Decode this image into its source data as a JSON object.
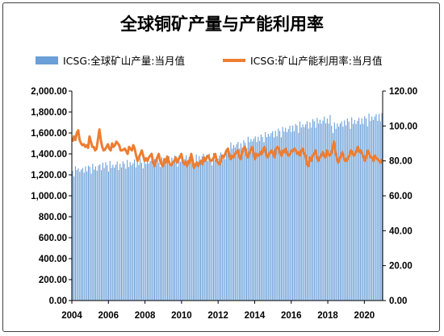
{
  "chart_data": {
    "type": "bar+line",
    "title": "全球铜矿产量与产能利用率",
    "legend": {
      "placement": "top"
    },
    "series": [
      {
        "name": "ICSG:全球矿山产量:当月值",
        "kind": "bar",
        "axis": "left",
        "color": "#6a9fd8",
        "values": [
          1238,
          1185,
          1282,
          1246,
          1262,
          1228,
          1250,
          1265,
          1221,
          1280,
          1232,
          1288,
          1276,
          1212,
          1305,
          1250,
          1280,
          1240,
          1290,
          1300,
          1245,
          1316,
          1265,
          1320,
          1292,
          1232,
          1331,
          1268,
          1296,
          1268,
          1297,
          1327,
          1246,
          1306,
          1271,
          1329,
          1307,
          1258,
          1342,
          1275,
          1321,
          1291,
          1311,
          1346,
          1271,
          1339,
          1295,
          1358,
          1314,
          1262,
          1355,
          1303,
          1335,
          1307,
          1332,
          1349,
          1286,
          1351,
          1300,
          1363,
          1315,
          1276,
          1368,
          1315,
          1361,
          1330,
          1346,
          1378,
          1308,
          1364,
          1309,
          1384,
          1336,
          1279,
          1385,
          1325,
          1365,
          1343,
          1352,
          1387,
          1307,
          1372,
          1327,
          1395,
          1349,
          1297,
          1394,
          1328,
          1380,
          1347,
          1379,
          1402,
          1334,
          1389,
          1334,
          1403,
          1346,
          1290,
          1408,
          1344,
          1384,
          1356,
          1384,
          1413,
          1342,
          1392,
          1350,
          1416,
          1449,
          1390,
          1509,
          1451,
          1485,
          1460,
          1492,
          1515,
          1451,
          1502,
          1460,
          1531,
          1506,
          1453,
          1564,
          1513,
          1541,
          1520,
          1545,
          1567,
          1514,
          1564,
          1524,
          1585,
          1561,
          1512,
          1608,
          1560,
          1592,
          1567,
          1598,
          1616,
          1557,
          1621,
          1568,
          1641,
          1618,
          1558,
          1658,
          1613,
          1649,
          1608,
          1637,
          1670,
          1609,
          1671,
          1617,
          1685,
          1672,
          1601,
          1709,
          1652,
          1681,
          1654,
          1682,
          1712,
          1642,
          1702,
          1651,
          1732,
          1712,
          1650,
          1745,
          1690,
          1726,
          1688,
          1718,
          1756,
          1691,
          1738,
          1689,
          1772,
          1668,
          1600,
          1700,
          1640,
          1690,
          1660,
          1690,
          1710,
          1660,
          1720,
          1672,
          1739,
          1709,
          1640,
          1749,
          1686,
          1724,
          1686,
          1716,
          1744,
          1682,
          1741,
          1687,
          1760,
          1739,
          1664,
          1785,
          1714,
          1757,
          1724,
          1756,
          1780,
          1716,
          1781,
          1711,
          1790
        ]
      },
      {
        "name": "ICSG:矿山产能利用率:当月值",
        "kind": "line",
        "axis": "right",
        "color": "#ed7d31",
        "values": [
          91.0,
          94.0,
          92.0,
          96.0,
          97.5,
          92.0,
          90.0,
          89.0,
          89.5,
          88.0,
          89.0,
          87.5,
          94.0,
          91.0,
          88.0,
          88.0,
          86.0,
          87.0,
          92.5,
          98.0,
          92.0,
          88.0,
          86.0,
          86.5,
          88.0,
          89.5,
          87.0,
          86.0,
          90.0,
          88.0,
          89.0,
          91.0,
          90.0,
          89.0,
          86.0,
          86.0,
          86.5,
          87.0,
          85.5,
          84.0,
          88.0,
          87.0,
          86.0,
          89.0,
          87.0,
          83.0,
          80.0,
          82.0,
          84.0,
          86.0,
          83.0,
          80.0,
          81.5,
          80.0,
          82.0,
          83.0,
          84.0,
          79.0,
          77.0,
          80.0,
          82.0,
          84.0,
          80.0,
          78.0,
          77.0,
          81.0,
          79.0,
          82.5,
          80.0,
          78.0,
          77.5,
          79.0,
          80.0,
          82.0,
          79.0,
          81.0,
          82.0,
          84.0,
          80.0,
          78.0,
          79.5,
          77.0,
          80.0,
          79.0,
          84.0,
          80.0,
          76.0,
          78.0,
          79.0,
          77.0,
          79.0,
          80.0,
          78.0,
          82.0,
          80.0,
          82.0,
          83.0,
          81.0,
          80.0,
          80.5,
          82.0,
          84.0,
          80.0,
          79.0,
          78.0,
          80.0,
          83.0,
          82.0,
          84.0,
          86.0,
          87.0,
          83.0,
          81.0,
          83.0,
          82.0,
          84.0,
          85.0,
          86.0,
          82.5,
          81.0,
          85.0,
          87.0,
          88.0,
          84.0,
          82.0,
          84.0,
          86.0,
          88.0,
          85.0,
          81.0,
          84.0,
          83.0,
          83.0,
          85.0,
          84.0,
          87.0,
          88.0,
          84.0,
          82.0,
          84.0,
          85.0,
          86.0,
          84.0,
          82.0,
          87.0,
          88.0,
          87.0,
          84.0,
          83.0,
          86.0,
          85.0,
          87.0,
          84.0,
          83.0,
          84.0,
          86.0,
          85.5,
          87.0,
          86.0,
          84.0,
          85.0,
          83.0,
          86.0,
          87.0,
          84.0,
          83.0,
          78.0,
          77.0,
          82.0,
          80.0,
          83.0,
          84.0,
          86.0,
          82.0,
          80.0,
          82.0,
          83.0,
          85.0,
          83.0,
          82.0,
          86.0,
          84.0,
          83.0,
          84.0,
          87.0,
          91.0,
          85.0,
          82.0,
          79.0,
          81.0,
          83.0,
          85.0,
          82.0,
          80.0,
          80.0,
          82.0,
          83.0,
          86.0,
          85.0,
          83.0,
          84.0,
          86.0,
          88.0,
          85.0,
          86.0,
          84.0,
          82.0,
          80.0,
          83.0,
          86.0,
          84.0,
          82.0,
          82.0,
          80.0,
          83.0,
          81.5,
          81.0,
          80.0,
          79.0,
          81.0
        ]
      }
    ],
    "x_axis": {
      "start": 2004.0,
      "end": 2021.0,
      "ticks": [
        "2004",
        "2006",
        "2008",
        "2010",
        "2012",
        "2014",
        "2016",
        "2018",
        "2020"
      ]
    },
    "y_left": {
      "range": [
        0,
        2000
      ],
      "ticks": [
        "0.00",
        "200.00",
        "400.00",
        "600.00",
        "800.00",
        "1,000.00",
        "1,200.00",
        "1,400.00",
        "1,600.00",
        "1,800.00",
        "2,000.00"
      ]
    },
    "y_right": {
      "range": [
        0,
        120
      ],
      "ticks": [
        "0.00",
        "20.00",
        "40.00",
        "60.00",
        "80.00",
        "100.00",
        "120.00"
      ]
    },
    "grid": false
  }
}
